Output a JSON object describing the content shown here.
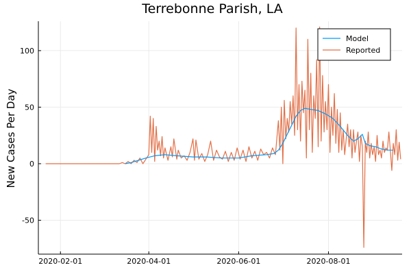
{
  "chart_data": {
    "type": "line",
    "title": "Terrebonne Parish, LA",
    "xlabel": "",
    "ylabel": "New Cases Per Day",
    "x_ticks": [
      "2020-02-01",
      "2020-04-01",
      "2020-06-01",
      "2020-08-01"
    ],
    "y_ticks": [
      -50,
      0,
      50,
      100
    ],
    "xlim": [
      "2020-01-17",
      "2020-09-20"
    ],
    "ylim": [
      -80,
      126
    ],
    "grid": true,
    "legend_position": "top-right",
    "series": [
      {
        "name": "Model",
        "color": "#009af9",
        "points": [
          [
            "2020-03-16",
            0
          ],
          [
            "2020-03-20",
            1
          ],
          [
            "2020-03-25",
            3
          ],
          [
            "2020-03-30",
            5
          ],
          [
            "2020-04-05",
            7
          ],
          [
            "2020-04-12",
            8
          ],
          [
            "2020-04-20",
            7
          ],
          [
            "2020-05-01",
            6
          ],
          [
            "2020-05-10",
            6
          ],
          [
            "2020-05-20",
            5
          ],
          [
            "2020-06-01",
            5
          ],
          [
            "2020-06-10",
            7
          ],
          [
            "2020-06-20",
            8
          ],
          [
            "2020-06-25",
            9
          ],
          [
            "2020-06-28",
            12
          ],
          [
            "2020-07-01",
            18
          ],
          [
            "2020-07-04",
            26
          ],
          [
            "2020-07-07",
            34
          ],
          [
            "2020-07-10",
            42
          ],
          [
            "2020-07-13",
            47
          ],
          [
            "2020-07-16",
            49
          ],
          [
            "2020-07-20",
            48
          ],
          [
            "2020-07-25",
            47
          ],
          [
            "2020-07-30",
            44
          ],
          [
            "2020-08-04",
            40
          ],
          [
            "2020-08-09",
            33
          ],
          [
            "2020-08-14",
            25
          ],
          [
            "2020-08-18",
            20
          ],
          [
            "2020-08-21",
            22
          ],
          [
            "2020-08-24",
            26
          ],
          [
            "2020-08-26",
            18
          ],
          [
            "2020-08-29",
            16
          ],
          [
            "2020-09-02",
            15
          ],
          [
            "2020-09-06",
            13
          ],
          [
            "2020-09-10",
            12
          ],
          [
            "2020-09-14",
            12
          ]
        ]
      },
      {
        "name": "Reported",
        "color": "#e26f46",
        "points": [
          [
            "2020-01-22",
            0
          ],
          [
            "2020-02-20",
            0
          ],
          [
            "2020-03-12",
            0
          ],
          [
            "2020-03-14",
            1
          ],
          [
            "2020-03-16",
            0
          ],
          [
            "2020-03-18",
            2
          ],
          [
            "2020-03-20",
            0
          ],
          [
            "2020-03-22",
            3
          ],
          [
            "2020-03-24",
            1
          ],
          [
            "2020-03-26",
            5
          ],
          [
            "2020-03-28",
            0
          ],
          [
            "2020-03-30",
            4
          ],
          [
            "2020-04-01",
            8
          ],
          [
            "2020-04-02",
            42
          ],
          [
            "2020-04-03",
            10
          ],
          [
            "2020-04-04",
            40
          ],
          [
            "2020-04-05",
            2
          ],
          [
            "2020-04-06",
            33
          ],
          [
            "2020-04-07",
            12
          ],
          [
            "2020-04-08",
            20
          ],
          [
            "2020-04-09",
            7
          ],
          [
            "2020-04-10",
            24
          ],
          [
            "2020-04-11",
            5
          ],
          [
            "2020-04-12",
            14
          ],
          [
            "2020-04-14",
            3
          ],
          [
            "2020-04-16",
            15
          ],
          [
            "2020-04-17",
            6
          ],
          [
            "2020-04-18",
            22
          ],
          [
            "2020-04-20",
            4
          ],
          [
            "2020-04-21",
            12
          ],
          [
            "2020-04-23",
            5
          ],
          [
            "2020-04-25",
            7
          ],
          [
            "2020-04-27",
            3
          ],
          [
            "2020-04-29",
            10
          ],
          [
            "2020-05-01",
            22
          ],
          [
            "2020-05-02",
            3
          ],
          [
            "2020-05-03",
            21
          ],
          [
            "2020-05-05",
            4
          ],
          [
            "2020-05-07",
            9
          ],
          [
            "2020-05-09",
            2
          ],
          [
            "2020-05-11",
            8
          ],
          [
            "2020-05-13",
            20
          ],
          [
            "2020-05-15",
            3
          ],
          [
            "2020-05-17",
            12
          ],
          [
            "2020-05-19",
            6
          ],
          [
            "2020-05-21",
            4
          ],
          [
            "2020-05-23",
            11
          ],
          [
            "2020-05-25",
            2
          ],
          [
            "2020-05-27",
            10
          ],
          [
            "2020-05-29",
            3
          ],
          [
            "2020-05-31",
            14
          ],
          [
            "2020-06-02",
            4
          ],
          [
            "2020-06-04",
            12
          ],
          [
            "2020-06-06",
            2
          ],
          [
            "2020-06-08",
            15
          ],
          [
            "2020-06-10",
            5
          ],
          [
            "2020-06-12",
            11
          ],
          [
            "2020-06-14",
            3
          ],
          [
            "2020-06-16",
            13
          ],
          [
            "2020-06-18",
            8
          ],
          [
            "2020-06-20",
            10
          ],
          [
            "2020-06-22",
            5
          ],
          [
            "2020-06-24",
            14
          ],
          [
            "2020-06-26",
            8
          ],
          [
            "2020-06-28",
            38
          ],
          [
            "2020-06-29",
            12
          ],
          [
            "2020-06-30",
            50
          ],
          [
            "2020-07-01",
            0
          ],
          [
            "2020-07-02",
            56
          ],
          [
            "2020-07-03",
            22
          ],
          [
            "2020-07-04",
            40
          ],
          [
            "2020-07-05",
            28
          ],
          [
            "2020-07-06",
            55
          ],
          [
            "2020-07-07",
            35
          ],
          [
            "2020-07-08",
            60
          ],
          [
            "2020-07-09",
            25
          ],
          [
            "2020-07-10",
            120
          ],
          [
            "2020-07-11",
            30
          ],
          [
            "2020-07-12",
            70
          ],
          [
            "2020-07-13",
            20
          ],
          [
            "2020-07-14",
            73
          ],
          [
            "2020-07-15",
            45
          ],
          [
            "2020-07-16",
            65
          ],
          [
            "2020-07-17",
            5
          ],
          [
            "2020-07-18",
            110
          ],
          [
            "2020-07-19",
            30
          ],
          [
            "2020-07-20",
            80
          ],
          [
            "2020-07-21",
            10
          ],
          [
            "2020-07-22",
            60
          ],
          [
            "2020-07-23",
            40
          ],
          [
            "2020-07-24",
            92
          ],
          [
            "2020-07-25",
            15
          ],
          [
            "2020-07-26",
            121
          ],
          [
            "2020-07-27",
            20
          ],
          [
            "2020-07-28",
            78
          ],
          [
            "2020-07-29",
            28
          ],
          [
            "2020-07-30",
            55
          ],
          [
            "2020-07-31",
            30
          ],
          [
            "2020-08-01",
            70
          ],
          [
            "2020-08-02",
            10
          ],
          [
            "2020-08-03",
            50
          ],
          [
            "2020-08-04",
            25
          ],
          [
            "2020-08-05",
            62
          ],
          [
            "2020-08-06",
            18
          ],
          [
            "2020-08-07",
            48
          ],
          [
            "2020-08-08",
            10
          ],
          [
            "2020-08-09",
            45
          ],
          [
            "2020-08-10",
            12
          ],
          [
            "2020-08-11",
            30
          ],
          [
            "2020-08-12",
            8
          ],
          [
            "2020-08-14",
            35
          ],
          [
            "2020-08-15",
            15
          ],
          [
            "2020-08-16",
            30
          ],
          [
            "2020-08-17",
            5
          ],
          [
            "2020-08-18",
            30
          ],
          [
            "2020-08-19",
            10
          ],
          [
            "2020-08-20",
            20
          ],
          [
            "2020-08-21",
            28
          ],
          [
            "2020-08-22",
            2
          ],
          [
            "2020-08-23",
            25
          ],
          [
            "2020-08-24",
            15
          ],
          [
            "2020-08-25",
            -74
          ],
          [
            "2020-08-26",
            20
          ],
          [
            "2020-08-27",
            10
          ],
          [
            "2020-08-28",
            28
          ],
          [
            "2020-08-29",
            5
          ],
          [
            "2020-08-30",
            18
          ],
          [
            "2020-08-31",
            8
          ],
          [
            "2020-09-01",
            15
          ],
          [
            "2020-09-02",
            2
          ],
          [
            "2020-09-03",
            25
          ],
          [
            "2020-09-04",
            8
          ],
          [
            "2020-09-05",
            12
          ],
          [
            "2020-09-06",
            5
          ],
          [
            "2020-09-07",
            20
          ],
          [
            "2020-09-08",
            10
          ],
          [
            "2020-09-09",
            14
          ],
          [
            "2020-09-10",
            12
          ],
          [
            "2020-09-11",
            28
          ],
          [
            "2020-09-12",
            12
          ],
          [
            "2020-09-13",
            -6
          ],
          [
            "2020-09-14",
            18
          ],
          [
            "2020-09-15",
            8
          ],
          [
            "2020-09-16",
            30
          ],
          [
            "2020-09-17",
            3
          ],
          [
            "2020-09-18",
            19
          ],
          [
            "2020-09-19",
            4
          ]
        ]
      }
    ]
  }
}
